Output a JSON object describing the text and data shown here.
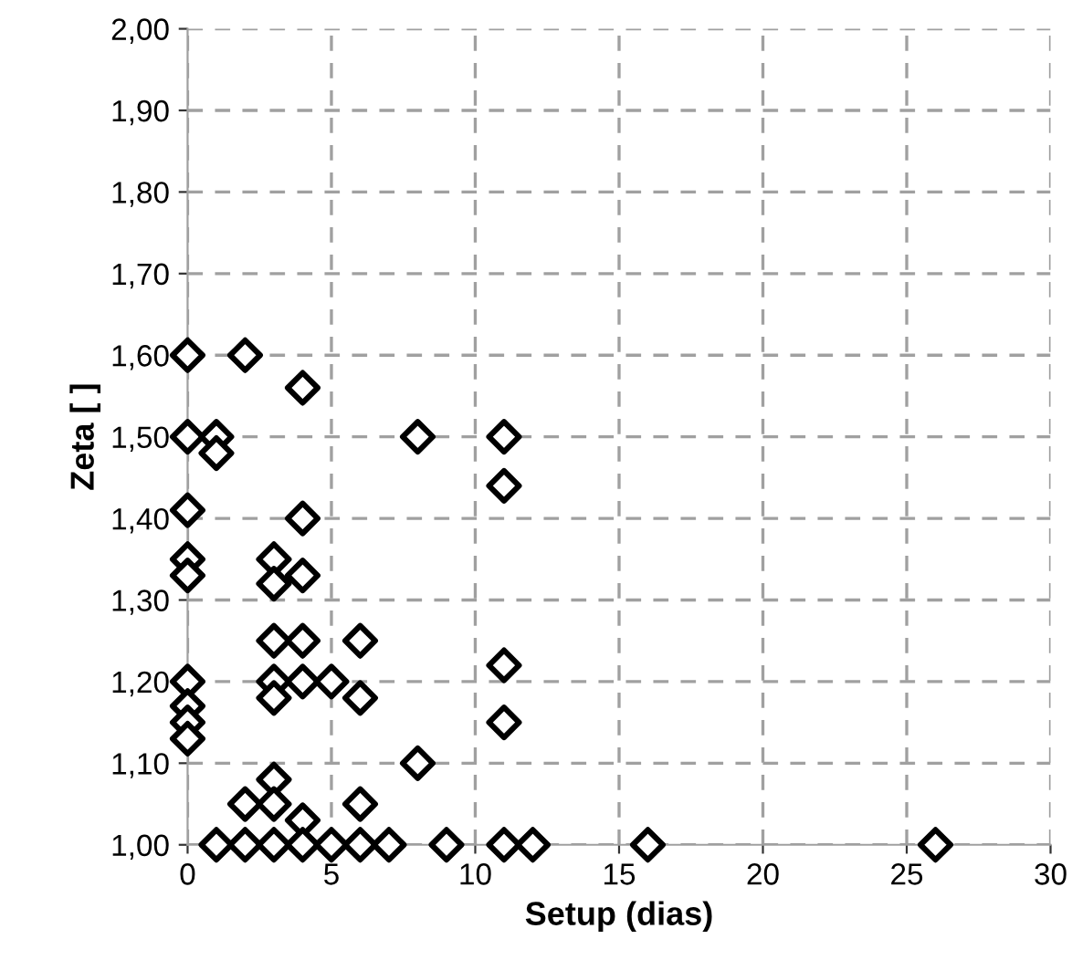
{
  "chart_data": {
    "type": "scatter",
    "xlabel": "Setup (dias)",
    "ylabel": "Zeta [ ]",
    "x": [
      0,
      0,
      0,
      0,
      0,
      0,
      0,
      0,
      0,
      1,
      1,
      1,
      2,
      2,
      2,
      3,
      3,
      3,
      3,
      3,
      3,
      3,
      3,
      4,
      4,
      4,
      4,
      4,
      4,
      4,
      5,
      5,
      6,
      6,
      6,
      6,
      7,
      8,
      8,
      9,
      11,
      11,
      11,
      11,
      11,
      12,
      16,
      26
    ],
    "values": [
      1.6,
      1.5,
      1.41,
      1.35,
      1.33,
      1.2,
      1.17,
      1.15,
      1.13,
      1.5,
      1.48,
      1.0,
      1.6,
      1.05,
      1.0,
      1.35,
      1.32,
      1.25,
      1.2,
      1.18,
      1.08,
      1.05,
      1.0,
      1.56,
      1.4,
      1.33,
      1.25,
      1.2,
      1.03,
      1.0,
      1.2,
      1.0,
      1.25,
      1.18,
      1.05,
      1.0,
      1.0,
      1.5,
      1.1,
      1.0,
      1.5,
      1.44,
      1.22,
      1.15,
      1.0,
      1.0,
      1.0,
      1.0
    ],
    "color": "#000000",
    "marker": "diamond",
    "grid": true,
    "xlim": [
      0,
      30
    ],
    "xticks": [
      0,
      5,
      10,
      15,
      20,
      25,
      30
    ],
    "ylim": [
      1.0,
      2.0
    ],
    "yticks": [
      {
        "value": 1.0,
        "label": "1,00"
      },
      {
        "value": 1.1,
        "label": "1,10"
      },
      {
        "value": 1.2,
        "label": "1,20"
      },
      {
        "value": 1.3,
        "label": "1,30"
      },
      {
        "value": 1.4,
        "label": "1,40"
      },
      {
        "value": 1.5,
        "label": "1,50"
      },
      {
        "value": 1.6,
        "label": "1,60"
      },
      {
        "value": 1.7,
        "label": "1,70"
      },
      {
        "value": 1.8,
        "label": "1,80"
      },
      {
        "value": 1.9,
        "label": "1,90"
      },
      {
        "value": 2.0,
        "label": "2,00"
      }
    ]
  }
}
